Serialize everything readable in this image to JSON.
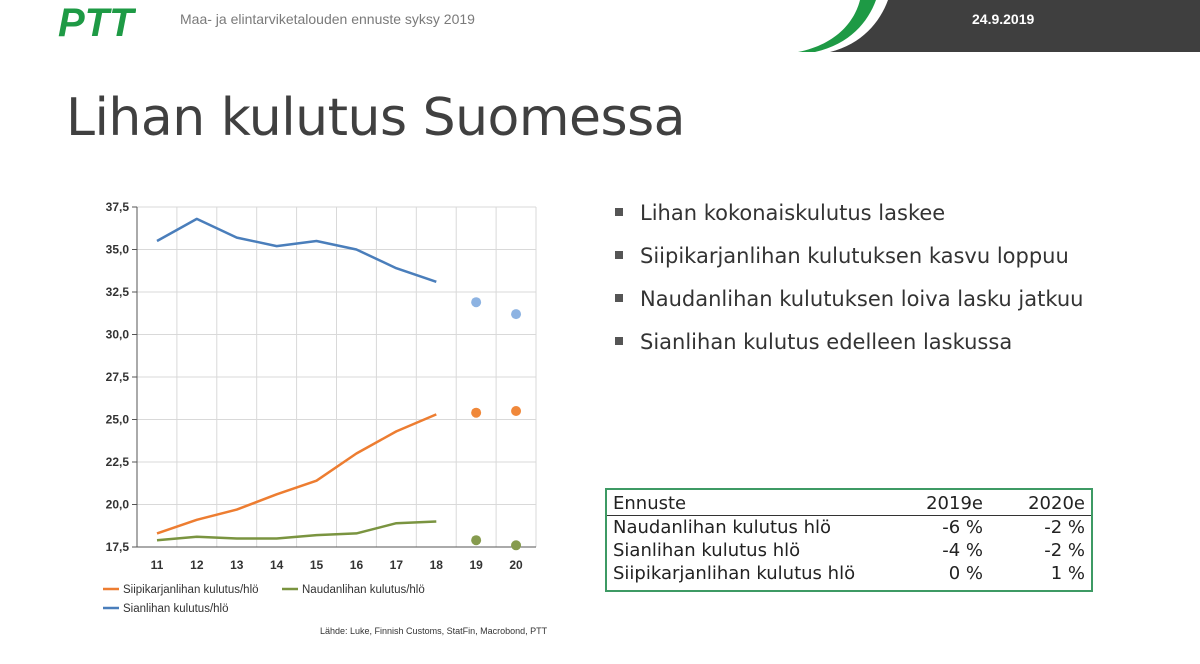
{
  "header": {
    "logo_text": "PTT",
    "subtitle": "Maa- ja elintarviketalouden ennuste syksy 2019",
    "date": "24.9.2019",
    "colors": {
      "brand_green": "#1e9a45",
      "band_dark": "#3f3f3f"
    }
  },
  "title": "Lihan kulutus Suomessa",
  "bullets": [
    "Lihan kokonaiskulutus laskee",
    "Siipikarjanlihan kulutuksen kasvu loppuu",
    "Naudanlihan kulutuksen loiva lasku jatkuu",
    "Sianlihan kulutus edelleen laskussa"
  ],
  "forecast_table": {
    "headers": [
      "Ennuste",
      "2019e",
      "2020e"
    ],
    "rows": [
      [
        "Naudanlihan kulutus hlö",
        "-6 %",
        "-2 %"
      ],
      [
        "Sianlihan kulutus hlö",
        "-4 %",
        "-2 %"
      ],
      [
        "Siipikarjanlihan kulutus hlö",
        "0 %",
        "1 %"
      ]
    ]
  },
  "source": "Lähde: Luke, Finnish Customs, StatFin, Macrobond, PTT",
  "chart_data": {
    "type": "line",
    "x": [
      "11",
      "12",
      "13",
      "14",
      "15",
      "16",
      "17",
      "18",
      "19",
      "20"
    ],
    "ylim": [
      17.5,
      37.5
    ],
    "yticks": [
      "17,5",
      "20,0",
      "22,5",
      "25,0",
      "27,5",
      "30,0",
      "32,5",
      "35,0",
      "37,5"
    ],
    "grid": true,
    "legend_position": "bottom",
    "series": [
      {
        "name": "Siipikarjanlihan kulutus/hlö",
        "color": "#ed7d31",
        "values": [
          18.3,
          19.1,
          19.7,
          20.6,
          21.4,
          23.0,
          24.3,
          25.3,
          null,
          null
        ],
        "forecast": [
          null,
          null,
          null,
          null,
          null,
          null,
          null,
          null,
          25.4,
          25.5
        ],
        "forecast_color": "#f0883a"
      },
      {
        "name": "Naudanlihan kulutus/hlö",
        "color": "#7a9440",
        "values": [
          17.9,
          18.1,
          18.0,
          18.0,
          18.2,
          18.3,
          18.9,
          19.0,
          null,
          null
        ],
        "forecast": [
          null,
          null,
          null,
          null,
          null,
          null,
          null,
          null,
          17.9,
          17.6
        ],
        "forecast_color": "#869b4e"
      },
      {
        "name": "Sianlihan kulutus/hlö",
        "color": "#4a7ebb",
        "values": [
          35.5,
          36.8,
          35.7,
          35.2,
          35.5,
          35.0,
          33.9,
          33.1,
          null,
          null
        ],
        "forecast": [
          null,
          null,
          null,
          null,
          null,
          null,
          null,
          null,
          31.9,
          31.2
        ],
        "forecast_color": "#8db3e2"
      }
    ]
  }
}
